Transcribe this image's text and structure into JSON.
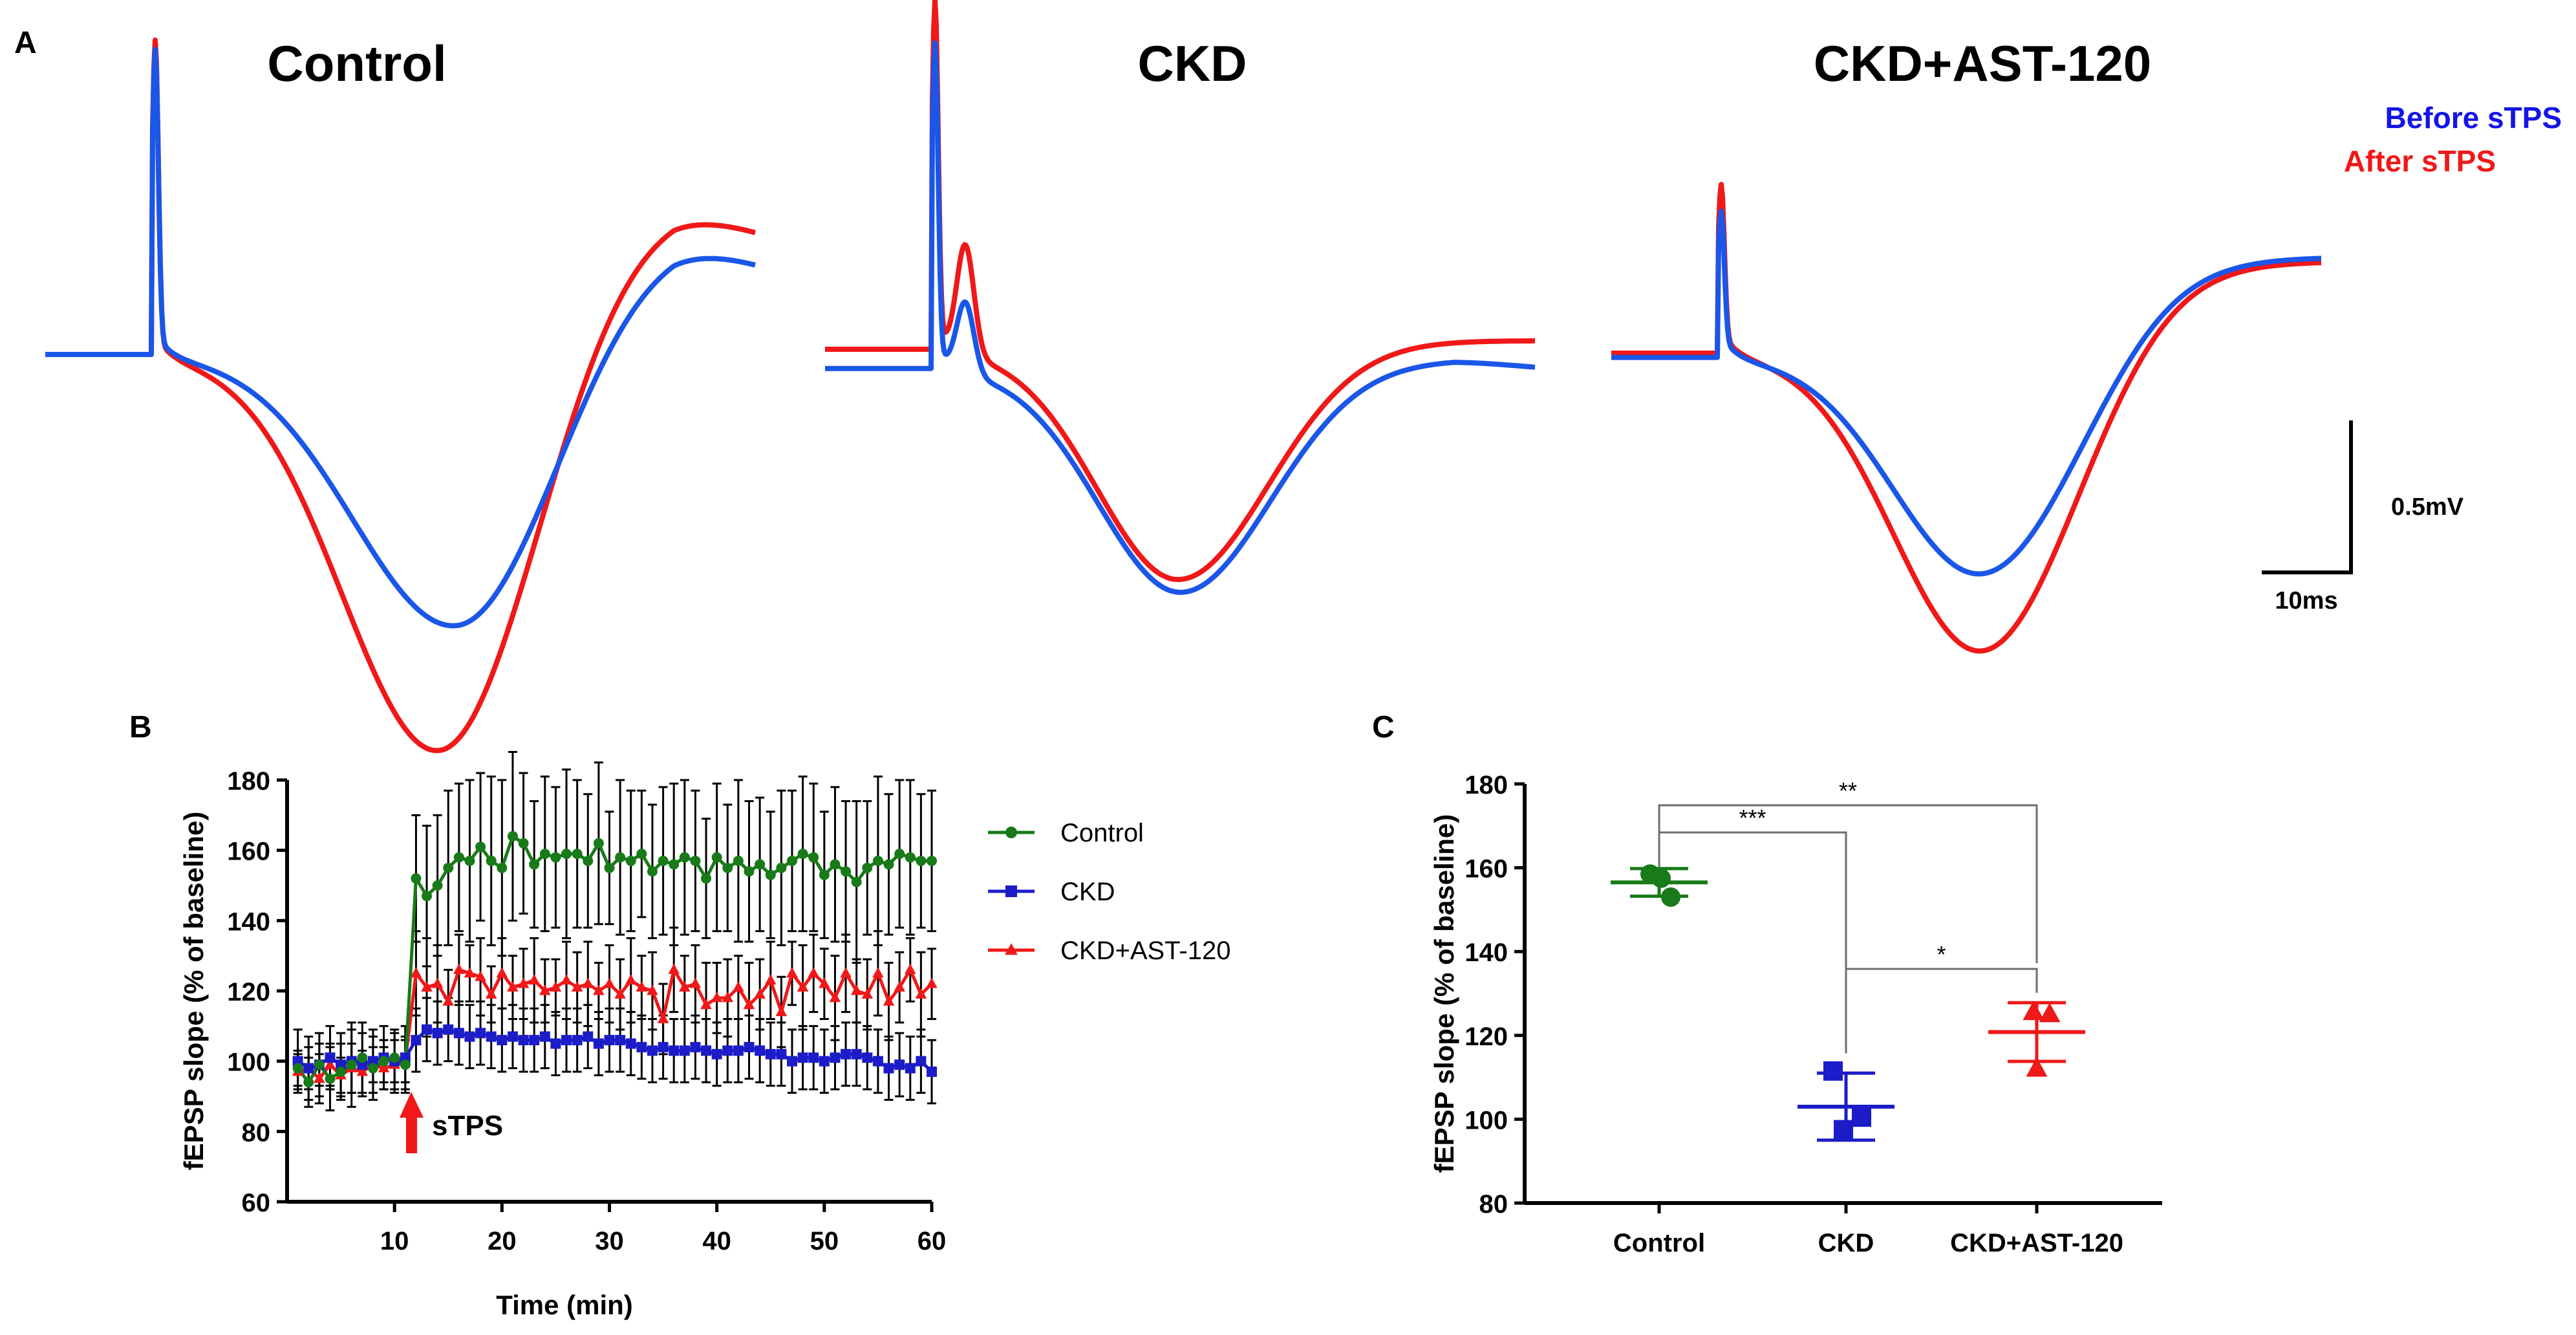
{
  "colors": {
    "before": "#1a56e8",
    "after": "#f01818",
    "legend_before": "#1414e6",
    "legend_after": "#f01818",
    "control": "#187a18",
    "ckd": "#1c1cc8",
    "ckd_ast": "#f01818",
    "axis": "#000000",
    "bracket": "#6e6e6e"
  },
  "panel_a": {
    "label": "A",
    "legend": {
      "before": "Before sTPS",
      "after": "After sTPS"
    },
    "scale_bar": {
      "voltage": "0.5mV",
      "time": "10ms"
    },
    "traces": [
      {
        "title": "Control",
        "before": {
          "baseline": 0,
          "spike_peak": 1.33,
          "trough": -1.29,
          "trough_time": 17.0,
          "late_plateau": 0.57,
          "end_value": 0.41
        },
        "after": {
          "baseline": 0,
          "spike_peak": 1.38,
          "trough": -1.88,
          "trough_time": 16.3,
          "late_plateau": 0.72,
          "end_value": 0.56
        }
      },
      {
        "title": "CKD",
        "before": {
          "baseline": -0.09,
          "spike_peak": 1.33,
          "bump": 0.33,
          "trough": -1.14,
          "trough_time": 14.7,
          "late_plateau": -0.05,
          "end_value": -0.09
        },
        "after": {
          "baseline": 0,
          "spike_peak": 1.53,
          "bump": 0.51,
          "trough": -1.08,
          "trough_time": 14.6,
          "late_plateau": 0.04,
          "end_value": 0.04
        }
      },
      {
        "title": "CKD+AST-120",
        "before": {
          "baseline": -0.02,
          "spike_peak": 0.56,
          "trough": -1.05,
          "trough_time": 15.3,
          "late_plateau": 0.45,
          "end_value": 0.45
        },
        "after": {
          "baseline": 0,
          "spike_peak": 0.69,
          "trough": -1.41,
          "trough_time": 15.3,
          "late_plateau": 0.43,
          "end_value": 0.43
        }
      }
    ]
  },
  "chart_data": [
    {
      "panel": "B",
      "type": "line",
      "xlabel": "Time (min)",
      "ylabel": "fEPSP slope (% of baseline)",
      "xlim": [
        0,
        60
      ],
      "ylim": [
        60,
        180
      ],
      "xticks": [
        10,
        20,
        30,
        40,
        50,
        60
      ],
      "yticks": [
        60,
        80,
        100,
        120,
        140,
        160,
        180
      ],
      "annotation": {
        "text": "sTPS",
        "x": 11
      },
      "series": [
        {
          "name": "Control",
          "x": [
            1,
            2,
            3,
            4,
            5,
            6,
            7,
            8,
            9,
            10,
            11,
            12,
            13,
            14,
            15,
            16,
            17,
            18,
            19,
            20,
            21,
            22,
            23,
            24,
            25,
            26,
            27,
            28,
            29,
            30,
            31,
            32,
            33,
            34,
            35,
            36,
            37,
            38,
            39,
            40,
            41,
            42,
            43,
            44,
            45,
            46,
            47,
            48,
            49,
            50,
            51,
            52,
            53,
            54,
            55,
            56,
            57,
            58,
            59,
            60
          ],
          "y": [
            98,
            94,
            99,
            95,
            97,
            99,
            101,
            98,
            100,
            101,
            99,
            152,
            147,
            150,
            155,
            158,
            157,
            161,
            157,
            155,
            164,
            162,
            156,
            159,
            158,
            159,
            159,
            157,
            162,
            155,
            158,
            157,
            159,
            154,
            157,
            156,
            158,
            157,
            152,
            158,
            155,
            157,
            154,
            156,
            153,
            155,
            157,
            159,
            158,
            153,
            156,
            154,
            151,
            155,
            157,
            156,
            159,
            158,
            157,
            157
          ],
          "err": [
            5,
            7,
            6,
            9,
            8,
            12,
            10,
            9,
            6,
            7,
            8,
            18,
            20,
            20,
            22,
            21,
            23,
            21,
            24,
            25,
            24,
            20,
            18,
            22,
            20,
            24,
            21,
            19,
            23,
            16,
            22,
            20,
            18,
            19,
            21,
            23,
            22,
            20,
            17,
            21,
            18,
            23,
            20,
            19,
            18,
            22,
            20,
            22,
            21,
            18,
            22,
            20,
            23,
            19,
            24,
            20,
            21,
            22,
            19,
            20
          ]
        },
        {
          "name": "CKD",
          "x": [
            1,
            2,
            3,
            4,
            5,
            6,
            7,
            8,
            9,
            10,
            11,
            12,
            13,
            14,
            15,
            16,
            17,
            18,
            19,
            20,
            21,
            22,
            23,
            24,
            25,
            26,
            27,
            28,
            29,
            30,
            31,
            32,
            33,
            34,
            35,
            36,
            37,
            38,
            39,
            40,
            41,
            42,
            43,
            44,
            45,
            46,
            47,
            48,
            49,
            50,
            51,
            52,
            53,
            54,
            55,
            56,
            57,
            58,
            59,
            60
          ],
          "y": [
            100,
            98,
            99,
            101,
            99,
            100,
            99,
            100,
            101,
            100,
            101,
            106,
            109,
            108,
            109,
            108,
            107,
            108,
            107,
            106,
            107,
            106,
            106,
            107,
            105,
            106,
            106,
            107,
            105,
            106,
            106,
            105,
            104,
            103,
            104,
            103,
            103,
            104,
            103,
            102,
            103,
            103,
            104,
            103,
            102,
            102,
            100,
            101,
            101,
            100,
            101,
            102,
            102,
            101,
            100,
            98,
            99,
            98,
            100,
            97
          ]
        },
        {
          "name": "CKD+AST-120",
          "x": [
            1,
            2,
            3,
            4,
            5,
            6,
            7,
            8,
            9,
            10,
            11,
            12,
            13,
            14,
            15,
            16,
            17,
            18,
            19,
            20,
            21,
            22,
            23,
            24,
            25,
            26,
            27,
            28,
            29,
            30,
            31,
            32,
            33,
            34,
            35,
            36,
            37,
            38,
            39,
            40,
            41,
            42,
            43,
            44,
            45,
            46,
            47,
            48,
            49,
            50,
            51,
            52,
            53,
            54,
            55,
            56,
            57,
            58,
            59,
            60
          ],
          "y": [
            97,
            98,
            95,
            99,
            96,
            98,
            97,
            99,
            98,
            99,
            100,
            125,
            121,
            122,
            117,
            126,
            125,
            124,
            119,
            125,
            121,
            122,
            123,
            120,
            121,
            123,
            121,
            122,
            120,
            122,
            119,
            123,
            121,
            120,
            112,
            126,
            121,
            122,
            116,
            118,
            118,
            121,
            116,
            119,
            123,
            114,
            125,
            121,
            125,
            122,
            118,
            125,
            120,
            119,
            125,
            117,
            121,
            126,
            119,
            122
          ],
          "err": [
            5,
            6,
            7,
            6,
            5,
            7,
            6,
            5,
            6,
            7,
            6,
            12,
            14,
            11,
            9,
            10,
            8,
            11,
            8,
            10,
            9,
            10,
            12,
            9,
            8,
            11,
            10,
            12,
            8,
            11,
            10,
            12,
            9,
            11,
            10,
            12,
            9,
            11,
            12,
            10,
            11,
            9,
            12,
            10,
            11,
            10,
            9,
            12,
            11,
            10,
            12,
            11,
            9,
            10,
            12,
            11,
            10,
            9,
            12,
            10
          ]
        }
      ],
      "legend": [
        "Control",
        "CKD",
        "CKD+AST-120"
      ]
    },
    {
      "panel": "C",
      "type": "scatter",
      "ylabel": "fEPSP slope (% of baseline)",
      "ylim": [
        80,
        180
      ],
      "yticks": [
        80,
        100,
        120,
        140,
        160,
        180
      ],
      "categories": [
        "Control",
        "CKD",
        "CKD+AST-120"
      ],
      "groups": [
        {
          "name": "Control",
          "marker": "circle",
          "points": [
            158.5,
            157.5,
            153.0
          ],
          "mean": 156.5,
          "sd": 3.3
        },
        {
          "name": "CKD",
          "marker": "square",
          "points": [
            111.5,
            100.5,
            97.5
          ],
          "mean": 103.0,
          "sd": 8.0
        },
        {
          "name": "CKD+AST-120",
          "marker": "triangle",
          "points": [
            125.5,
            125.0,
            112.0
          ],
          "mean": 120.8,
          "sd": 7.0
        }
      ],
      "significance": [
        {
          "from": "Control",
          "to": "CKD",
          "label": "***"
        },
        {
          "from": "Control",
          "to": "CKD+AST-120",
          "label": "**"
        },
        {
          "from": "CKD",
          "to": "CKD+AST-120",
          "label": "*"
        }
      ]
    }
  ]
}
